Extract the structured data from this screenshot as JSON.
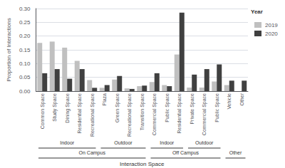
{
  "chart_data": {
    "type": "bar",
    "categories": [
      "Common Space",
      "Study Space",
      "Dining Space",
      "Residential Space",
      "Recreational Space",
      "Plaza",
      "Green Space",
      "Recreational Space",
      "Transition Space",
      "Commercial Space",
      "Public Space",
      "Residential Space",
      "Private Space",
      "Commercial Space",
      "Public Space",
      "Vehicle",
      "Other"
    ],
    "series": [
      {
        "name": "2019",
        "color": "#c0c0c0",
        "values": [
          0.175,
          0.18,
          0.158,
          0.11,
          0.04,
          0.012,
          0.042,
          0.01,
          0.018,
          0.033,
          0.022,
          0.133,
          0.013,
          0.013,
          0.035,
          0.022,
          0.0
        ]
      },
      {
        "name": "2020",
        "color": "#404040",
        "values": [
          0.065,
          0.08,
          0.045,
          0.08,
          0.012,
          0.022,
          0.055,
          0.008,
          0.02,
          0.065,
          0.018,
          0.285,
          0.06,
          0.08,
          0.097,
          0.038,
          0.038
        ]
      }
    ],
    "ylim": [
      0,
      0.3
    ],
    "yticks": [
      {
        "value": 0.0,
        "label": "0.00"
      },
      0.05,
      {
        "value": 0.1,
        "label": "0.10"
      },
      0.15,
      {
        "value": 0.2,
        "label": "0.20"
      },
      0.25,
      {
        "value": 0.3,
        "label": "0.30"
      }
    ],
    "ylabel": "Proportion of Interactions",
    "xlabel": "Interaction Space",
    "subgroups": [
      {
        "first": 0,
        "last": 4,
        "label": "Indoor"
      },
      {
        "first": 5,
        "last": 8,
        "label": "Outdoor"
      },
      {
        "first": 9,
        "last": 11,
        "label": "Indoor"
      },
      {
        "first": 12,
        "last": 14,
        "label": "Outdoor"
      }
    ],
    "groups": [
      {
        "first": 0,
        "last": 8,
        "label": "On Campus"
      },
      {
        "first": 9,
        "last": 14,
        "label": "Off Campus"
      },
      {
        "first": 15,
        "last": 16,
        "label": "Other"
      }
    ],
    "legend_title": "Year",
    "legend": "upper right",
    "grid": true
  }
}
